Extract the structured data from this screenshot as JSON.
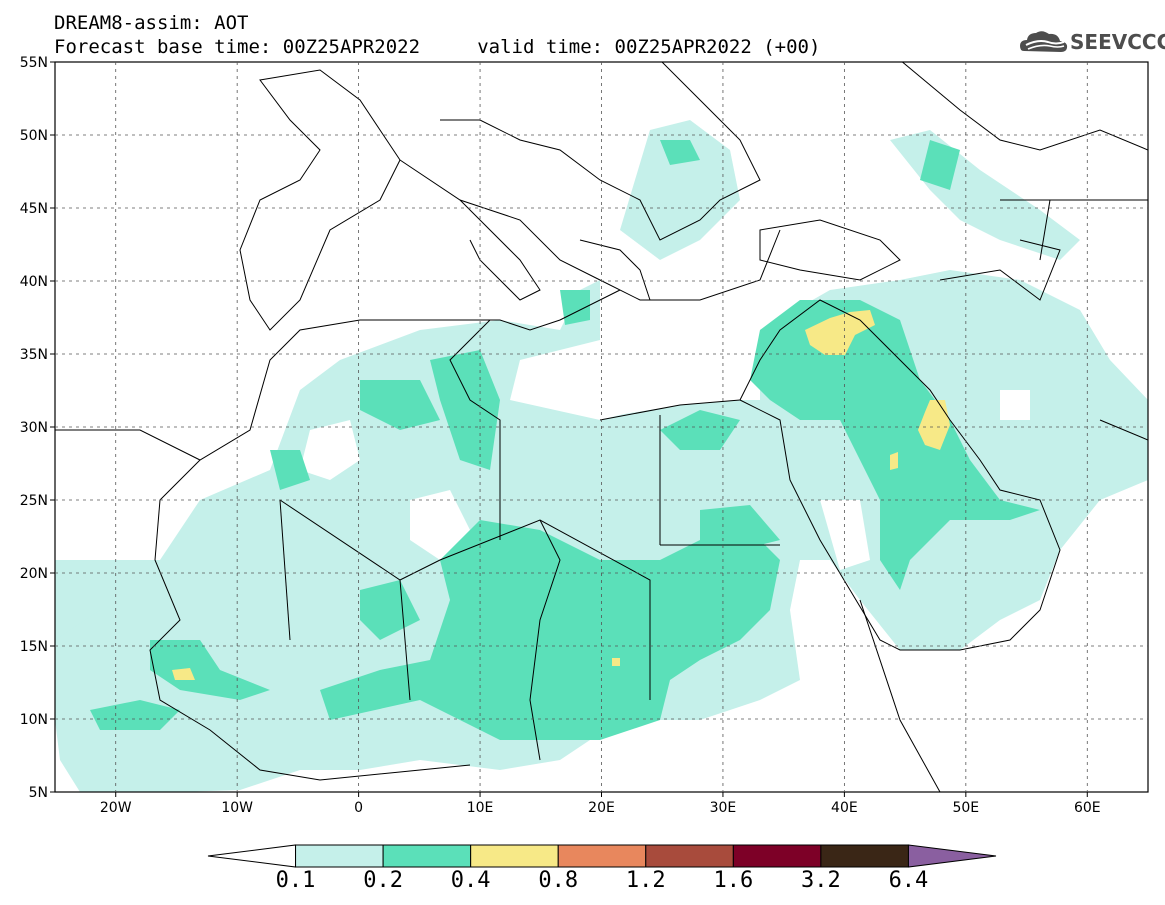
{
  "header": {
    "title_line1": "DREAM8-assim: AOT",
    "title_line2": "Forecast base time: 00Z25APR2022     valid time: 00Z25APR2022 (+00)",
    "logo_text": "SEEVCCC"
  },
  "map": {
    "lat_labels": [
      "55N",
      "50N",
      "45N",
      "40N",
      "35N",
      "30N",
      "25N",
      "20N",
      "15N",
      "10N",
      "5N"
    ],
    "lon_labels": [
      "20W",
      "10W",
      "0",
      "10E",
      "20E",
      "30E",
      "40E",
      "50E",
      "60E"
    ],
    "lat_values": [
      55,
      50,
      45,
      40,
      35,
      30,
      25,
      20,
      15,
      10,
      5
    ],
    "lon_values": [
      -20,
      -10,
      0,
      10,
      20,
      30,
      40,
      50,
      60
    ],
    "lon_range": [
      -25,
      65
    ],
    "lat_range": [
      5,
      55
    ]
  },
  "colorbar": {
    "labels": [
      "0.1",
      "0.2",
      "0.4",
      "0.8",
      "1.2",
      "1.6",
      "3.2",
      "6.4"
    ],
    "colors": [
      "#ffffff",
      "#c5f0ea",
      "#5be0b9",
      "#f7e987",
      "#e8875d",
      "#a84b3c",
      "#7d0027",
      "#3a2616",
      "#8a5fa0"
    ]
  },
  "chart_data": {
    "type": "heatmap",
    "title": "DREAM8-assim: AOT",
    "variable": "AOT",
    "levels": [
      0.1,
      0.2,
      0.4,
      0.8,
      1.2,
      1.6,
      3.2,
      6.4
    ],
    "xlim": [
      -25,
      65
    ],
    "ylim": [
      5,
      55
    ]
  }
}
